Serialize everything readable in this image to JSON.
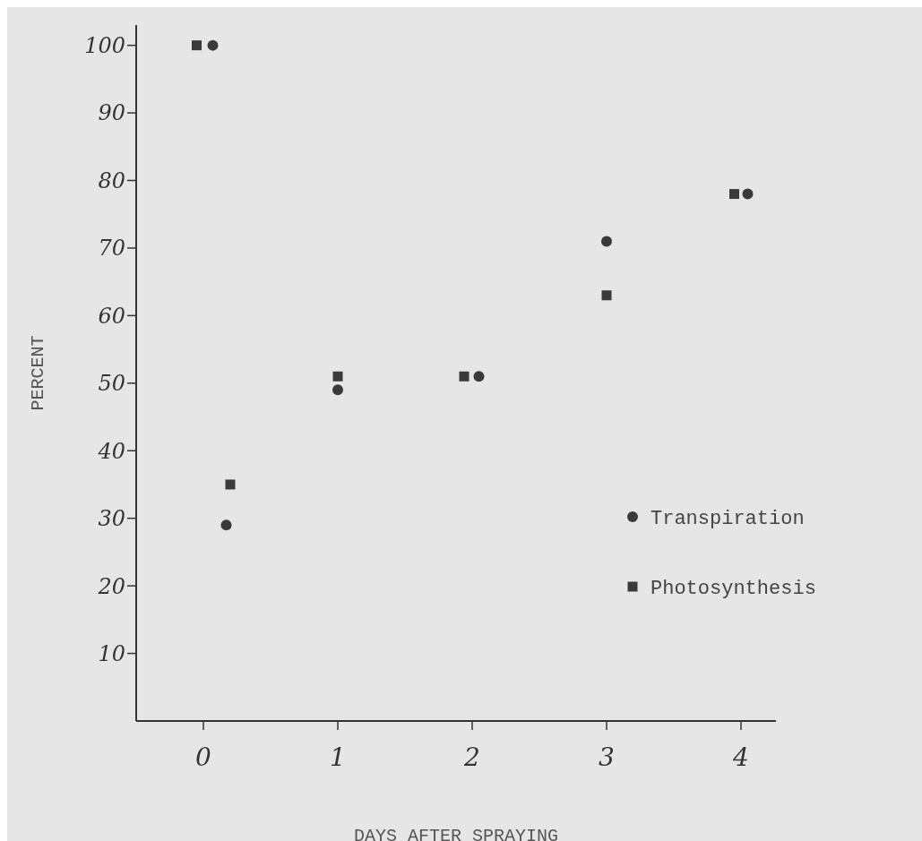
{
  "chart_data": {
    "type": "scatter",
    "xlabel": "DAYS AFTER SPRAYING",
    "ylabel": "PERCENT",
    "xlim": [
      -0.5,
      4.26
    ],
    "xticks": [
      0,
      1,
      2,
      3,
      4
    ],
    "ylim": [
      0,
      103
    ],
    "yticks": [
      10,
      20,
      30,
      40,
      50,
      60,
      70,
      80,
      90,
      100
    ],
    "legend": "bottom right",
    "grid": false,
    "series": [
      {
        "name": "Transpiration",
        "color": "#3a3a3a",
        "marker": "circle",
        "x": [
          0.07,
          0.17,
          1,
          2.05,
          3,
          4.05
        ],
        "values": [
          100,
          29,
          49,
          51,
          71,
          78
        ]
      },
      {
        "name": "Photosynthesis",
        "color": "#3a3a3a",
        "marker": "square",
        "x": [
          -0.05,
          0.2,
          1,
          1.94,
          3,
          3.95
        ],
        "values": [
          100,
          35,
          51,
          51,
          63,
          78
        ]
      }
    ]
  }
}
